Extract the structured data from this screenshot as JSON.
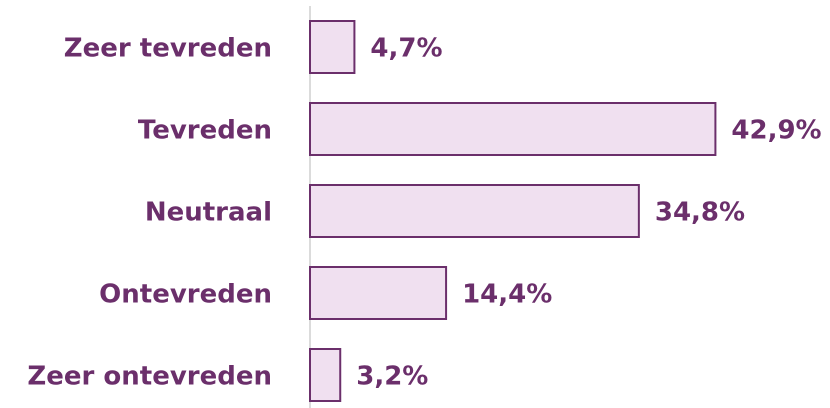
{
  "chart_data": {
    "type": "bar",
    "orientation": "horizontal",
    "categories": [
      "Zeer tevreden",
      "Tevreden",
      "Neutraal",
      "Ontevreden",
      "Zeer ontevreden"
    ],
    "values": [
      4.7,
      42.9,
      34.8,
      14.4,
      3.2
    ],
    "value_labels": [
      "4,7%",
      "42,9%",
      "34,8%",
      "14,4%",
      "3,2%"
    ],
    "color": "#f0e0f0",
    "edge_color": "#6b2f6b",
    "label_color": "#6b2f6b"
  }
}
